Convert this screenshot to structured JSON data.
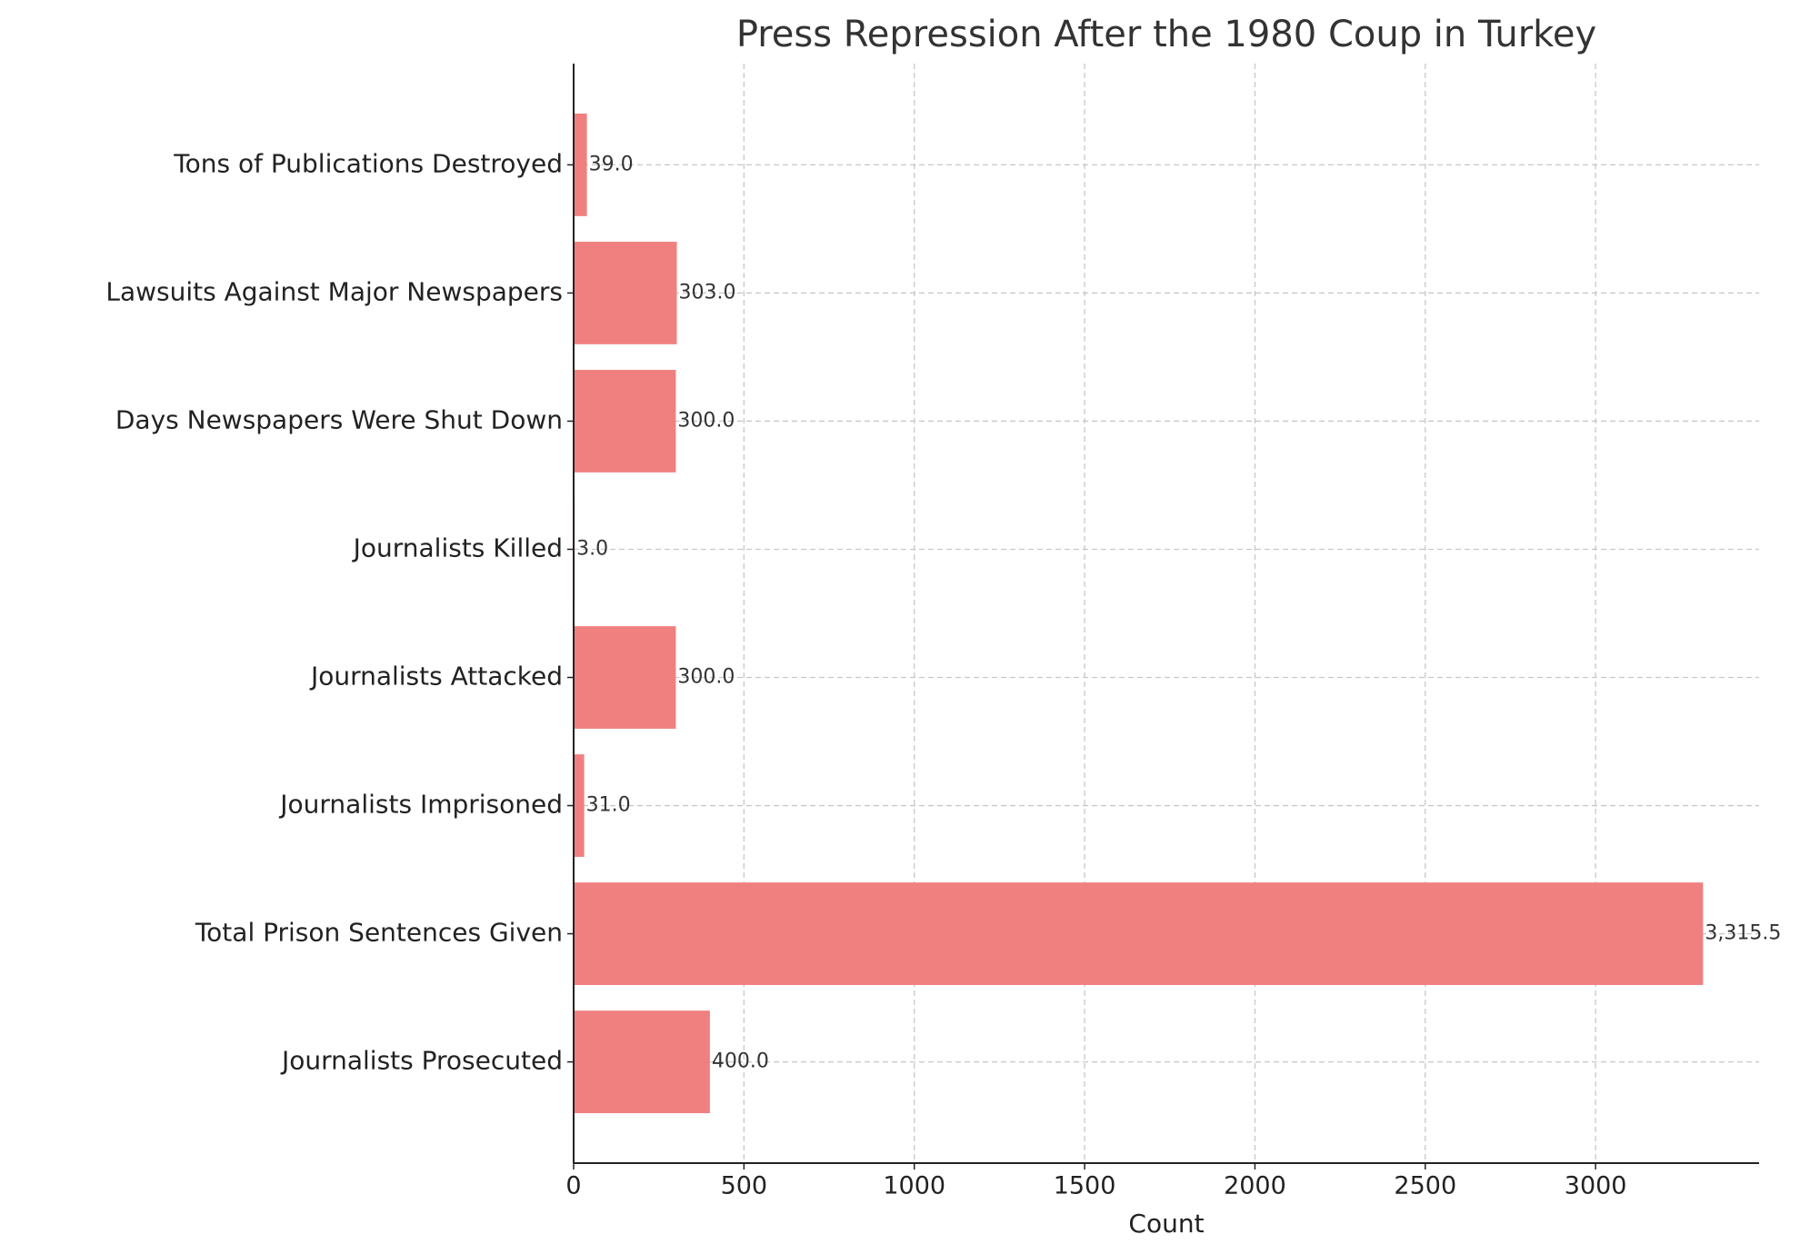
{
  "chart_data": {
    "type": "barh",
    "title": "Press Repression After the 1980 Coup in Turkey",
    "xlabel": "Count",
    "categories": [
      "Journalists Prosecuted",
      "Total Prison Sentences Given",
      "Journalists Imprisoned",
      "Journalists Attacked",
      "Journalists Killed",
      "Days Newspapers Were Shut Down",
      "Lawsuits Against Major Newspapers",
      "Tons of Publications Destroyed"
    ],
    "values": [
      400,
      3315.5,
      31,
      300,
      3,
      300,
      303,
      39
    ],
    "value_labels": [
      "400.0",
      "3,315.5",
      "31.0",
      "300.0",
      "3.0",
      "300.0",
      "303.0",
      "39.0"
    ],
    "color": "#f08080",
    "xlim": [
      0,
      3480
    ],
    "xticks": [
      0,
      500,
      1000,
      1500,
      2000,
      2500,
      3000
    ],
    "grid": true
  }
}
